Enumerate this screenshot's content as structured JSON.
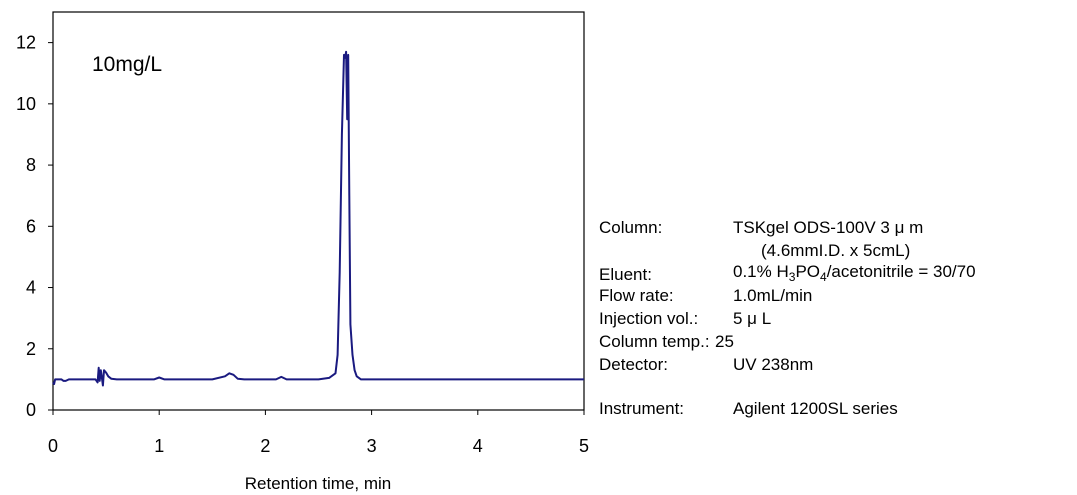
{
  "chart_data": {
    "type": "line",
    "title": "",
    "xlabel": "Retention time, min",
    "ylabel": "",
    "xlim": [
      0,
      5
    ],
    "ylim": [
      0,
      13
    ],
    "xticks": [
      "0",
      "1",
      "2",
      "3",
      "4",
      "5"
    ],
    "yticks": [
      "0",
      "2",
      "4",
      "6",
      "8",
      "10",
      "12"
    ],
    "annotation": "10mg/L",
    "grid": false,
    "legend": "none",
    "line_color": "#1a1a80",
    "series": [
      {
        "x": [
          0,
          0.01,
          0.02,
          0.03,
          0.05,
          0.08,
          0.1,
          0.12,
          0.15,
          0.2,
          0.3,
          0.4,
          0.42,
          0.43,
          0.44,
          0.45,
          0.46,
          0.47,
          0.48,
          0.5,
          0.52,
          0.55,
          0.6,
          0.8,
          0.95,
          1.0,
          1.05,
          1.2,
          1.5,
          1.62,
          1.66,
          1.7,
          1.74,
          1.8,
          2.1,
          2.15,
          2.2,
          2.25,
          2.5,
          2.6,
          2.66,
          2.68,
          2.7,
          2.72,
          2.74,
          2.75,
          2.76,
          2.77,
          2.78,
          2.79,
          2.8,
          2.82,
          2.84,
          2.86,
          2.9,
          3.0,
          3.5,
          4.0,
          4.5,
          5.0
        ],
        "y": [
          0.9,
          0.85,
          1.0,
          1.0,
          1.0,
          1.0,
          0.95,
          0.95,
          1.0,
          1.0,
          1.0,
          1.0,
          0.9,
          1.38,
          0.95,
          1.3,
          1.05,
          0.8,
          1.3,
          1.22,
          1.1,
          1.02,
          1.0,
          1.0,
          1.0,
          1.06,
          1.0,
          1.0,
          1.0,
          1.1,
          1.2,
          1.15,
          1.02,
          1.0,
          1.0,
          1.08,
          1.0,
          1.0,
          1.0,
          1.05,
          1.2,
          1.8,
          4.5,
          9.0,
          11.6,
          11.5,
          11.7,
          9.5,
          11.6,
          7.0,
          2.8,
          1.8,
          1.3,
          1.1,
          1.0,
          1.0,
          1.0,
          1.0,
          1.0,
          1.0
        ]
      }
    ]
  },
  "conditions": [
    {
      "label": "Column:",
      "value": "TSKgel ODS-100V 3 μ m",
      "value2": "(4.6mmI.D. x 5cmL)"
    },
    {
      "label": "Eluent:",
      "value_parts": [
        "0.1% H",
        "3",
        "PO",
        "4",
        "/acetonitrile = 30/70"
      ]
    },
    {
      "label": "Flow rate:",
      "value": "1.0mL/min"
    },
    {
      "label": "Injection vol.:",
      "value": "5 μ L"
    },
    {
      "label": "Column temp.:",
      "value": "25"
    },
    {
      "label": "Detector:",
      "value": "UV 238nm"
    },
    {
      "label": "Instrument:",
      "value": "Agilent 1200SL series"
    }
  ]
}
